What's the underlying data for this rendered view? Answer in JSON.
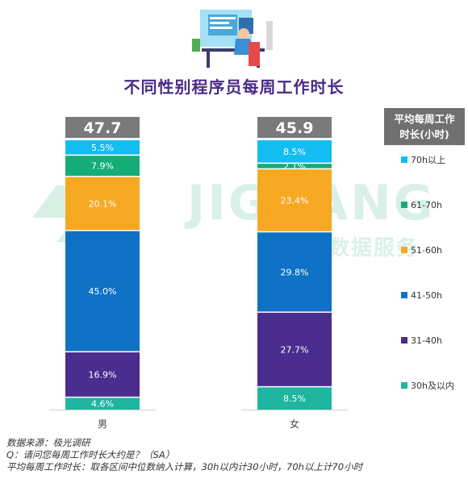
{
  "title": "不同性别程序员每周工作时长",
  "watermark": {
    "brand": "JIGUANG",
    "subtitle": "极光 数据服务"
  },
  "chart_data": {
    "type": "bar",
    "stacked": true,
    "categories": [
      "男",
      "女"
    ],
    "averages": [
      "47.7",
      "45.9"
    ],
    "legend_title": "平均每周工作时长(小时)",
    "legend_placement": "right",
    "series": [
      {
        "name": "30h及以内",
        "color": "#1fb5a0",
        "values": [
          4.6,
          8.5
        ]
      },
      {
        "name": "31-40h",
        "color": "#4b2c8f",
        "values": [
          16.9,
          27.7
        ]
      },
      {
        "name": "41-50h",
        "color": "#0f72c6",
        "values": [
          45.0,
          29.8
        ]
      },
      {
        "name": "51-60h",
        "color": "#f7a823",
        "values": [
          20.1,
          23.4
        ]
      },
      {
        "name": "61-70h",
        "color": "#14ad78",
        "values": [
          7.9,
          2.1
        ]
      },
      {
        "name": "70h以上",
        "color": "#14bdf0",
        "values": [
          5.5,
          8.5
        ]
      }
    ],
    "legend_order": [
      "70h以上",
      "61-70h",
      "51-60h",
      "41-50h",
      "31-40h",
      "30h及以内"
    ]
  },
  "notes": [
    "数据来源：极光调研",
    "Q：请问您每周工作时长大约是？（SA）",
    "平均每周工作时长：取各区间中位数纳入计算，30h以内计30小时，70h以上计70小时"
  ]
}
